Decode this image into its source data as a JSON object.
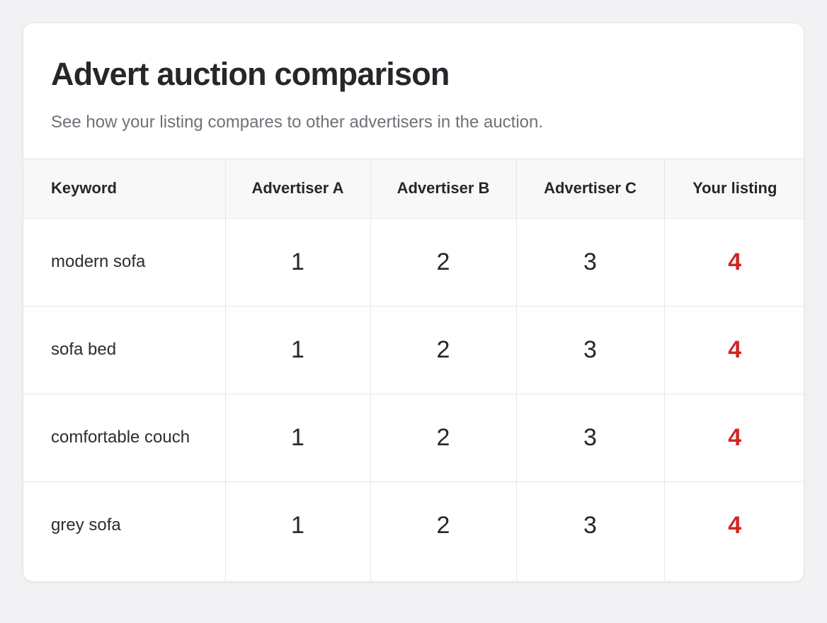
{
  "title": "Advert auction comparison",
  "subtitle": "See how your listing compares to other advertisers in the auction.",
  "columns": [
    "Keyword",
    "Advertiser A",
    "Advertiser B",
    "Advertiser C",
    "Your listing"
  ],
  "rows": [
    {
      "keyword": "modern sofa",
      "a": "1",
      "b": "2",
      "c": "3",
      "yours": "4"
    },
    {
      "keyword": "sofa bed",
      "a": "1",
      "b": "2",
      "c": "3",
      "yours": "4"
    },
    {
      "keyword": "comfortable couch",
      "a": "1",
      "b": "2",
      "c": "3",
      "yours": "4"
    },
    {
      "keyword": "grey sofa",
      "a": "1",
      "b": "2",
      "c": "3",
      "yours": "4"
    }
  ],
  "colors": {
    "your_listing": "#d42424",
    "background": "#f2f2f4",
    "text": "#25272b",
    "muted_text": "#6f7178"
  }
}
